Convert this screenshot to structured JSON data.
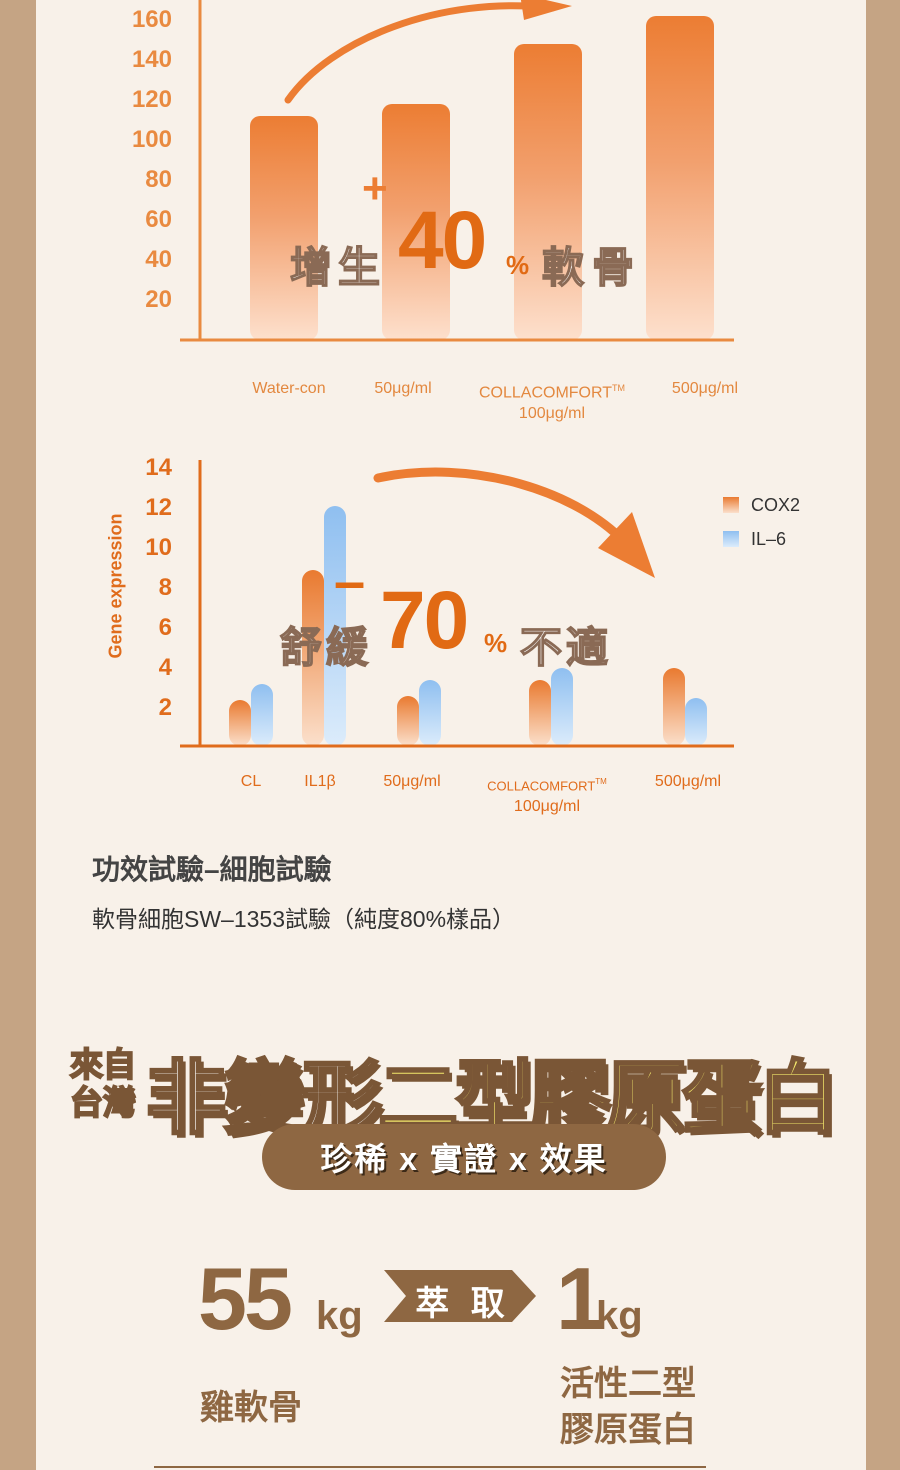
{
  "chart_data": [
    {
      "type": "bar",
      "categories": [
        {
          "label": "Water-con"
        },
        {
          "label": "50μg/ml"
        },
        {
          "label": "COLLACOMFORT",
          "tm": "TM",
          "sub": "100μg/ml"
        },
        {
          "label": "500μg/ml"
        }
      ],
      "values": [
        112,
        118,
        148,
        162
      ],
      "yticks": [
        "160",
        "140",
        "120",
        "100",
        "80",
        "60",
        "40",
        "20"
      ],
      "ylim": [
        0,
        170
      ],
      "annotation": {
        "sign": "+",
        "prefix": "增生",
        "number": "40",
        "unit": "%",
        "suffix": "軟骨"
      },
      "colors": {
        "bar_top": "#ec7d33",
        "bar_bottom": "#fde0cd",
        "axis": "#e98a40"
      }
    },
    {
      "type": "bar",
      "ylabel": "Gene expression",
      "categories": [
        {
          "label": "CL"
        },
        {
          "label": "IL1β"
        },
        {
          "label": "50μg/ml"
        },
        {
          "label": "COLLACOMFORT",
          "tm": "TM",
          "sub": "100μg/ml"
        },
        {
          "label": "500μg/ml"
        }
      ],
      "series": [
        {
          "name": "COX2",
          "values": [
            2.3,
            8.8,
            2.5,
            3.3,
            3.9
          ]
        },
        {
          "name": "IL-6",
          "values": [
            3.1,
            12.0,
            3.3,
            3.9,
            2.4
          ]
        }
      ],
      "yticks": [
        "14",
        "12",
        "10",
        "8",
        "6",
        "4",
        "2"
      ],
      "ylim": [
        0,
        14
      ],
      "legend_position": "top-right",
      "legend": [
        "COX2",
        "IL–6"
      ],
      "annotation": {
        "sign": "–",
        "prefix": "舒緩",
        "number": "70",
        "unit": "%",
        "suffix": "不適"
      },
      "colors": {
        "cox2": "#e97a30",
        "il6": "#8fbff0",
        "axis": "#e06c1c"
      }
    }
  ],
  "section": {
    "title": "功效試驗–細胞試驗",
    "subtitle": "軟骨細胞SW–1353試驗（純度80%樣品）"
  },
  "banner": {
    "origin_line1": "來自",
    "origin_line2": "台灣",
    "headline_white": "非變形",
    "headline_yellow": "二型膠原蛋白",
    "pill": "珍稀 x 實證 x 效果"
  },
  "extraction": {
    "from_number": "55",
    "from_unit": "kg",
    "arrow_label": "萃 取",
    "to_number": "1",
    "to_unit": "kg",
    "from_desc": "雞軟骨",
    "to_desc_line1": "活性二型",
    "to_desc_line2": "膠原蛋白"
  }
}
